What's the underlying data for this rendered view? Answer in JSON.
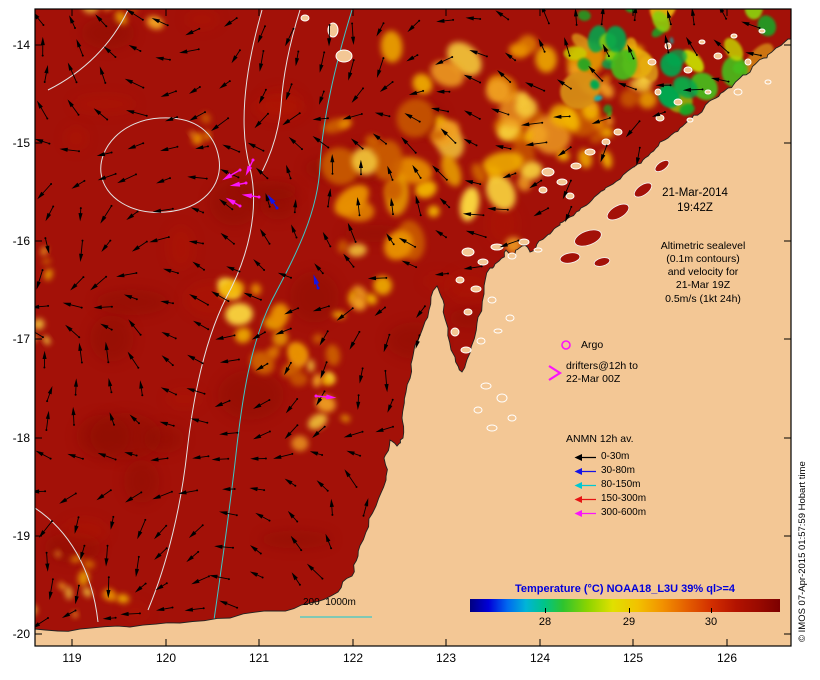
{
  "timestamp": {
    "date": "21-Mar-2014",
    "time": "19:42Z"
  },
  "altimetric_note": {
    "lines": [
      "Altimetric sealevel",
      "(0.1m contours)",
      "and velocity for",
      "21-Mar 19Z",
      "0.5m/s (1kt 24h)"
    ]
  },
  "argo": {
    "label": "Argo"
  },
  "drifters": {
    "lines": [
      "drifters@12h to",
      "22-Mar 00Z"
    ]
  },
  "anmn_legend": {
    "title": "ANMN 12h av.",
    "items": [
      {
        "label": "0-30m",
        "color": "#000000"
      },
      {
        "label": "30-80m",
        "color": "#1414E6"
      },
      {
        "label": "80-150m",
        "color": "#00C8D2"
      },
      {
        "label": "150-300m",
        "color": "#E61414"
      },
      {
        "label": "300-600m",
        "color": "#FA14FA"
      }
    ]
  },
  "scale_bar": {
    "label": "200  1000m",
    "line_color": "#3CC8C8"
  },
  "colorbar": {
    "title": "Temperature (°C) NOAA18_L3U 39% ql>=4",
    "title_color": "#0000DC",
    "ticks": [
      "28",
      "29",
      "30"
    ],
    "gradient": [
      [
        0,
        "#000080"
      ],
      [
        6,
        "#0000D8"
      ],
      [
        12,
        "#0068F0"
      ],
      [
        18,
        "#00B4D8"
      ],
      [
        24,
        "#00C488"
      ],
      [
        30,
        "#2EC42E"
      ],
      [
        38,
        "#8CD400"
      ],
      [
        46,
        "#E0E000"
      ],
      [
        54,
        "#F2C200"
      ],
      [
        62,
        "#F29200"
      ],
      [
        70,
        "#E45E00"
      ],
      [
        78,
        "#D22E00"
      ],
      [
        86,
        "#B21200"
      ],
      [
        93,
        "#9A0A00"
      ],
      [
        100,
        "#7C0000"
      ]
    ]
  },
  "axes": {
    "x_ticks": [
      "119",
      "120",
      "121",
      "122",
      "123",
      "124",
      "125",
      "126"
    ],
    "y_ticks": [
      "-14",
      "-15",
      "-16",
      "-17",
      "-18",
      "-19",
      "-20"
    ]
  },
  "watermark": {
    "text": "© IMOS 07-Apr-2015 01:57:59 Hobart time"
  },
  "map": {
    "ocean_color": "#A31108",
    "land_color": "#F3C795",
    "contour_gray": "#E3E3E3",
    "contour_cyan": "#3CC8C8",
    "arrow_color": "#000000",
    "drifter_color": "#FA14FA",
    "argo_color": "#FA14FA"
  }
}
